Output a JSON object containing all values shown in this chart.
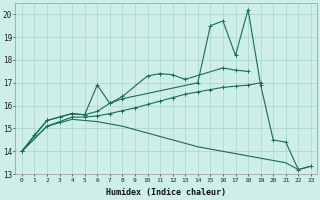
{
  "xlabel": "Humidex (Indice chaleur)",
  "xlim": [
    -0.5,
    23.5
  ],
  "ylim": [
    13,
    20.5
  ],
  "yticks": [
    13,
    14,
    15,
    16,
    17,
    18,
    19,
    20
  ],
  "xticks": [
    0,
    1,
    2,
    3,
    4,
    5,
    6,
    7,
    8,
    9,
    10,
    11,
    12,
    13,
    14,
    15,
    16,
    17,
    18,
    19,
    20,
    21,
    22,
    23
  ],
  "bg_color": "#ceeee8",
  "grid_color": "#aad4cc",
  "line_color": "#1a6b5a",
  "line1_x": [
    0,
    1,
    2,
    3,
    4,
    5,
    6,
    7,
    8,
    14,
    15,
    16,
    17,
    18,
    19,
    20,
    21,
    22,
    23
  ],
  "line1_y": [
    14.0,
    14.7,
    15.35,
    15.5,
    15.65,
    15.6,
    16.9,
    16.1,
    16.3,
    17.0,
    19.5,
    19.7,
    18.2,
    20.2,
    16.9,
    14.5,
    14.4,
    13.2,
    13.35
  ],
  "line2_x": [
    0,
    2,
    3,
    4,
    5,
    6,
    7,
    8,
    10,
    11,
    12,
    13,
    16,
    17,
    18
  ],
  "line2_y": [
    14.0,
    15.35,
    15.5,
    15.65,
    15.6,
    15.75,
    16.1,
    16.4,
    17.3,
    17.4,
    17.35,
    17.15,
    17.65,
    17.55,
    17.5
  ],
  "line3_x": [
    0,
    2,
    3,
    4,
    5,
    6,
    7,
    8,
    9,
    10,
    11,
    12,
    13,
    14,
    15,
    16,
    17,
    18,
    19
  ],
  "line3_y": [
    14.0,
    15.1,
    15.3,
    15.5,
    15.5,
    15.55,
    15.65,
    15.78,
    15.9,
    16.05,
    16.2,
    16.35,
    16.5,
    16.6,
    16.7,
    16.8,
    16.85,
    16.9,
    17.0
  ],
  "line4_x": [
    0,
    2,
    3,
    4,
    5,
    6,
    7,
    8,
    9,
    10,
    11,
    12,
    13,
    14,
    15,
    16,
    17,
    18,
    19,
    20,
    21,
    22,
    23
  ],
  "line4_y": [
    14.0,
    15.1,
    15.25,
    15.4,
    15.35,
    15.3,
    15.2,
    15.1,
    14.95,
    14.8,
    14.65,
    14.5,
    14.35,
    14.2,
    14.1,
    14.0,
    13.9,
    13.8,
    13.7,
    13.6,
    13.5,
    13.2,
    13.35
  ]
}
